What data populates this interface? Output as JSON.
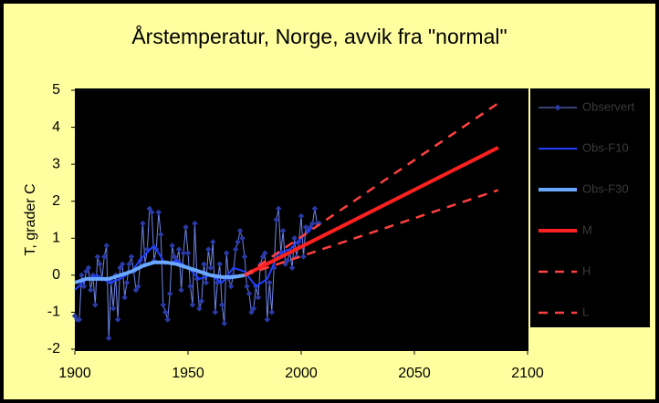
{
  "chart_data": {
    "type": "line",
    "title": "Årstemperatur, Norge, avvik fra \"normal\"",
    "ylabel": "T, grader C",
    "xlim": [
      1900,
      2100
    ],
    "xticks": [
      1900,
      1950,
      2000,
      2050,
      2100
    ],
    "ylim": [
      -2,
      5
    ],
    "yticks": [
      -2,
      -1,
      0,
      1,
      2,
      3,
      4,
      5
    ],
    "grid": false,
    "legend": "right",
    "series": [
      {
        "name": "Observert",
        "color": "#2a3aa8",
        "style": "markers",
        "x": [
          1900,
          1901,
          1902,
          1903,
          1904,
          1905,
          1906,
          1907,
          1908,
          1909,
          1910,
          1911,
          1912,
          1913,
          1914,
          1915,
          1916,
          1917,
          1918,
          1919,
          1920,
          1921,
          1922,
          1923,
          1924,
          1925,
          1926,
          1927,
          1928,
          1929,
          1930,
          1931,
          1932,
          1933,
          1934,
          1935,
          1936,
          1937,
          1938,
          1939,
          1940,
          1941,
          1942,
          1943,
          1944,
          1945,
          1946,
          1947,
          1948,
          1949,
          1950,
          1951,
          1952,
          1953,
          1954,
          1955,
          1956,
          1957,
          1958,
          1959,
          1960,
          1961,
          1962,
          1963,
          1964,
          1965,
          1966,
          1967,
          1968,
          1969,
          1970,
          1971,
          1972,
          1973,
          1974,
          1975,
          1976,
          1977,
          1978,
          1979,
          1980,
          1981,
          1982,
          1983,
          1984,
          1985,
          1986,
          1987,
          1988,
          1989,
          1990,
          1991,
          1992,
          1993,
          1994,
          1995,
          1996,
          1997,
          1998,
          1999,
          2000,
          2001,
          2002,
          2003,
          2004,
          2005,
          2006,
          2007,
          2008
        ],
        "values": [
          -1.1,
          -1.2,
          -1.2,
          0.0,
          -0.3,
          0.1,
          0.2,
          -0.4,
          0.0,
          -0.8,
          0.5,
          0.3,
          -0.1,
          0.5,
          0.8,
          -1.7,
          -0.2,
          -0.9,
          0.0,
          -1.2,
          0.2,
          0.3,
          -0.6,
          -0.2,
          0.3,
          0.5,
          0.1,
          -0.4,
          -0.3,
          0.4,
          1.4,
          0.3,
          0.7,
          1.8,
          1.7,
          0.4,
          0.7,
          1.7,
          1.1,
          -0.8,
          -1.0,
          -1.2,
          -0.5,
          0.8,
          0.5,
          0.4,
          0.7,
          -0.4,
          0.6,
          1.3,
          0.6,
          -0.3,
          -0.8,
          1.4,
          -0.1,
          -0.9,
          -0.7,
          0.3,
          -0.2,
          0.7,
          0.2,
          0.9,
          -1.0,
          -0.2,
          0.3,
          -0.8,
          -1.3,
          0.6,
          -0.1,
          -0.3,
          0.0,
          0.7,
          0.9,
          1.2,
          1.0,
          0.5,
          -0.3,
          -0.5,
          -1.0,
          -0.9,
          -0.3,
          -0.6,
          0.3,
          0.5,
          0.6,
          -1.2,
          -0.2,
          -1.0,
          0.2,
          1.5,
          1.8,
          0.6,
          1.2,
          0.3,
          0.4,
          0.6,
          0.2,
          1.0,
          0.5,
          0.9,
          1.6,
          0.5,
          1.3,
          1.2,
          1.3,
          1.4,
          1.8,
          1.4,
          1.4
        ]
      },
      {
        "name": "Obs-F10",
        "color": "#2040ff",
        "style": "solid",
        "x": [
          1900,
          1905,
          1910,
          1915,
          1920,
          1925,
          1930,
          1935,
          1940,
          1945,
          1950,
          1955,
          1960,
          1965,
          1970,
          1975,
          1980,
          1985,
          1990,
          1995,
          2000,
          2005
        ],
        "values": [
          -0.4,
          -0.1,
          0.0,
          -0.2,
          -0.1,
          0.1,
          0.5,
          0.8,
          0.3,
          0.4,
          0.2,
          -0.1,
          0.0,
          -0.2,
          0.2,
          0.1,
          -0.3,
          -0.1,
          0.6,
          0.7,
          1.0,
          1.3
        ]
      },
      {
        "name": "Obs-F30",
        "color": "#6aa8ff",
        "style": "thick",
        "x": [
          1900,
          1905,
          1910,
          1915,
          1920,
          1925,
          1930,
          1935,
          1940,
          1945,
          1950,
          1955,
          1960,
          1965,
          1970,
          1975
        ],
        "values": [
          -0.2,
          -0.1,
          -0.1,
          -0.1,
          0.0,
          0.1,
          0.25,
          0.35,
          0.35,
          0.3,
          0.2,
          0.1,
          0.0,
          -0.05,
          -0.05,
          0.0
        ]
      },
      {
        "name": "M",
        "color": "#ff2020",
        "style": "thick",
        "x": [
          1975,
          2087
        ],
        "values": [
          0,
          3.45
        ]
      },
      {
        "name": "H",
        "color": "#ff4040",
        "style": "dashed",
        "x": [
          1975,
          2087
        ],
        "values": [
          0,
          4.65
        ]
      },
      {
        "name": "L",
        "color": "#ff4040",
        "style": "dashed",
        "x": [
          1975,
          2087
        ],
        "values": [
          0,
          2.3
        ]
      }
    ]
  }
}
